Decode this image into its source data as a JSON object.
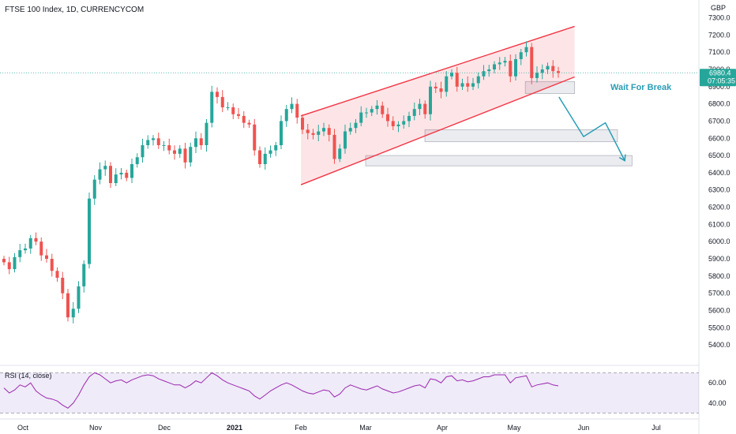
{
  "chart_data": {
    "type": "candlestick",
    "symbol_title": "FTSE 100 Index, 1D, CURRENCYCOM",
    "currency": "GBP",
    "last_price": "6980.4",
    "countdown": "07:05:35",
    "y_ticks": [
      "7300.0",
      "7200.0",
      "7100.0",
      "7000.0",
      "6900.0",
      "6800.0",
      "6700.0",
      "6600.0",
      "6500.0",
      "6400.0",
      "6300.0",
      "6200.0",
      "6100.0",
      "6000.0",
      "5900.0",
      "5800.0",
      "5700.0",
      "5600.0",
      "5500.0",
      "5400.0"
    ],
    "ylim": [
      5350,
      7330
    ],
    "x_labels": [
      "Oct",
      "Nov",
      "Dec",
      "2021",
      "Feb",
      "Mar",
      "Apr",
      "May",
      "Jun",
      "Jul"
    ],
    "annotation": "Wait For Break",
    "colors": {
      "up": "#26a69a",
      "down": "#ef5350",
      "channel": "#f23645",
      "arrow": "#2a9db5",
      "rsi": "#9c27b0"
    },
    "close_path": [
      5880,
      5840,
      5910,
      5950,
      5960,
      6020,
      6000,
      5920,
      5900,
      5830,
      5790,
      5700,
      5560,
      5610,
      5740,
      5870,
      6250,
      6360,
      6420,
      6440,
      6340,
      6390,
      6400,
      6370,
      6450,
      6490,
      6560,
      6590,
      6600,
      6560,
      6560,
      6530,
      6510,
      6540,
      6460,
      6550,
      6600,
      6560,
      6690,
      6870,
      6840,
      6780,
      6780,
      6740,
      6730,
      6690,
      6680,
      6530,
      6450,
      6510,
      6530,
      6560,
      6700,
      6770,
      6800,
      6720,
      6650,
      6630,
      6620,
      6640,
      6660,
      6620,
      6480,
      6540,
      6640,
      6660,
      6690,
      6750,
      6750,
      6770,
      6790,
      6740,
      6700,
      6670,
      6680,
      6700,
      6730,
      6770,
      6800,
      6740,
      6900,
      6890,
      6870,
      6960,
      6980,
      6900,
      6920,
      6900,
      6920,
      6960,
      6990,
      7000,
      7030,
      7040,
      7050,
      6960,
      7060,
      7100,
      7130,
      6950,
      6980,
      7000,
      7020,
      6990,
      6980
    ],
    "channel": {
      "upper": [
        [
          "2021-02-01",
          6730
        ],
        [
          "2021-05-28",
          7250
        ]
      ],
      "lower": [
        [
          "2021-02-01",
          6330
        ],
        [
          "2021-05-17",
          6900
        ]
      ]
    },
    "zones": [
      {
        "range": [
          6860,
          6930
        ],
        "from": "2021-05-06",
        "to": "2021-05-28"
      },
      {
        "range": [
          6580,
          6650
        ],
        "from": "2021-03-25",
        "to": "2021-06-15"
      },
      {
        "range": [
          6440,
          6500
        ],
        "from": "2021-03-01",
        "to": "2021-06-21"
      }
    ],
    "projection_path": [
      [
        "2021-05-21",
        6840
      ],
      [
        "2021-06-01",
        6610
      ],
      [
        "2021-06-10",
        6690
      ],
      [
        "2021-06-18",
        6470
      ]
    ],
    "rsi": {
      "label": "RSI (14, close)",
      "ticks": [
        "60.00",
        "40.00"
      ],
      "ylim": [
        25,
        75
      ],
      "values": [
        55,
        50,
        53,
        58,
        56,
        60,
        52,
        48,
        45,
        44,
        42,
        38,
        35,
        40,
        48,
        58,
        66,
        70,
        68,
        64,
        60,
        62,
        63,
        60,
        63,
        65,
        67,
        68,
        67,
        64,
        62,
        60,
        58,
        58,
        55,
        58,
        62,
        60,
        65,
        70,
        67,
        63,
        60,
        58,
        56,
        54,
        52,
        47,
        44,
        48,
        52,
        55,
        58,
        60,
        58,
        55,
        52,
        50,
        49,
        51,
        53,
        52,
        46,
        49,
        55,
        58,
        56,
        54,
        53,
        55,
        57,
        54,
        52,
        50,
        51,
        53,
        55,
        57,
        58,
        55,
        64,
        63,
        60,
        66,
        67,
        62,
        63,
        61,
        62,
        64,
        66,
        66,
        68,
        68,
        68,
        60,
        65,
        66,
        67,
        56,
        58,
        59,
        60,
        58,
        57
      ]
    }
  }
}
